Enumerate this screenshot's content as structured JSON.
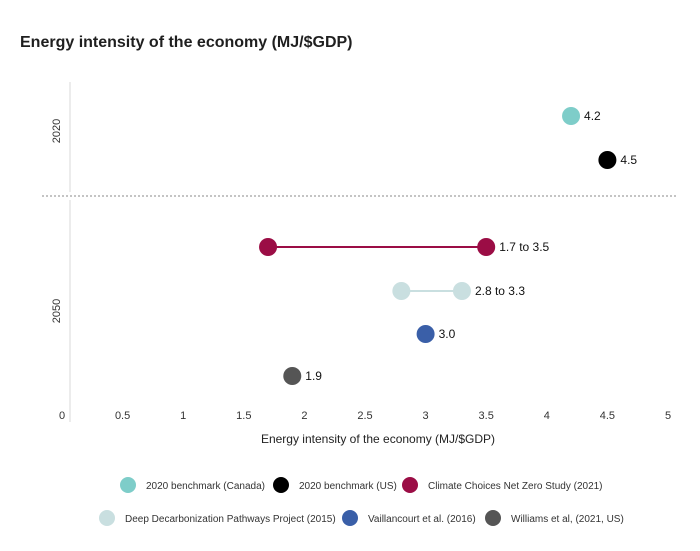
{
  "chart_data": {
    "type": "scatter",
    "title": "Energy intensity of the economy (MJ/$GDP)",
    "xlabel": "Energy intensity of the economy (MJ/$GDP)",
    "ylabel": "",
    "xlim": [
      0,
      5
    ],
    "x_ticks": [
      "0",
      "0.5",
      "1",
      "1.5",
      "2",
      "2.5",
      "3",
      "3.5",
      "4",
      "4.5",
      "5"
    ],
    "groups": [
      "2020",
      "2050"
    ],
    "grid": false,
    "legend_position": "bottom",
    "series": [
      {
        "name": "2020 benchmark (Canada)",
        "group": "2020",
        "color": "#7ecdc9",
        "values": [
          4.2
        ],
        "label": "4.2"
      },
      {
        "name": "2020 benchmark (US)",
        "group": "2020",
        "color": "#000000",
        "values": [
          4.5
        ],
        "label": "4.5"
      },
      {
        "name": "Climate Choices Net Zero Study (2021)",
        "group": "2050",
        "color": "#9b0d45",
        "values": [
          1.7,
          3.5
        ],
        "label": "1.7 to 3.5"
      },
      {
        "name": "Deep Decarbonization Pathways Project (2015)",
        "group": "2050",
        "color": "#c9dfe0",
        "values": [
          2.8,
          3.3
        ],
        "label": "2.8 to 3.3"
      },
      {
        "name": "Vaillancourt et al. (2016)",
        "group": "2050",
        "color": "#3a5fa8",
        "values": [
          3.0
        ],
        "label": "3.0"
      },
      {
        "name": "Williams et al, (2021, US)",
        "group": "2050",
        "color": "#555555",
        "values": [
          1.9
        ],
        "label": "1.9"
      }
    ]
  }
}
